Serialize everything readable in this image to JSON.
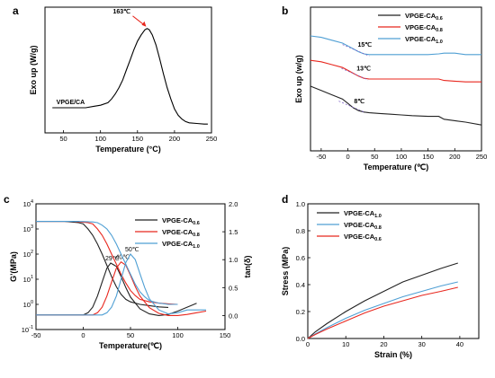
{
  "chart_data": [
    {
      "panel": "a",
      "type": "line",
      "xlabel": "Temperature (°C)",
      "ylabel": "Exo up (W/g)",
      "xlim": [
        25,
        250
      ],
      "xticks": [
        50,
        100,
        150,
        200,
        250
      ],
      "ylim": [
        0,
        1
      ],
      "colors": {
        "line": "#000000",
        "annotation": "#e8271e"
      },
      "series": [
        {
          "name": "VPGE/CA",
          "x": [
            35,
            50,
            60,
            70,
            80,
            90,
            100,
            110,
            115,
            120,
            125,
            130,
            135,
            140,
            145,
            150,
            155,
            160,
            163,
            166,
            170,
            175,
            180,
            185,
            190,
            195,
            200,
            205,
            210,
            215,
            220,
            230,
            240,
            245
          ],
          "y": [
            0.2,
            0.2,
            0.2,
            0.2,
            0.2,
            0.21,
            0.22,
            0.24,
            0.27,
            0.31,
            0.36,
            0.42,
            0.5,
            0.58,
            0.66,
            0.73,
            0.78,
            0.82,
            0.83,
            0.82,
            0.78,
            0.7,
            0.59,
            0.47,
            0.36,
            0.27,
            0.19,
            0.14,
            0.11,
            0.09,
            0.08,
            0.075,
            0.07,
            0.07
          ]
        }
      ],
      "annotations": [
        {
          "text": "163℃",
          "x": 163,
          "y": 0.83
        },
        {
          "text": "VPGE/CA",
          "x": 55,
          "y": 0.23
        }
      ]
    },
    {
      "panel": "b",
      "type": "line",
      "xlabel": "Temperature (℃)",
      "ylabel": "Exo up (w/g)",
      "xlim": [
        -70,
        250
      ],
      "xticks": [
        -50,
        0,
        50,
        100,
        150,
        200,
        250
      ],
      "ylim": [
        0,
        1
      ],
      "legend_position": "top-right",
      "series": [
        {
          "name": "VPGE-CA0.6",
          "color": "#222222",
          "x": [
            -70,
            -50,
            -30,
            -10,
            0,
            10,
            20,
            30,
            40,
            60,
            80,
            100,
            120,
            150,
            170,
            180,
            200,
            220,
            250
          ],
          "y": [
            0.45,
            0.42,
            0.39,
            0.36,
            0.33,
            0.3,
            0.28,
            0.27,
            0.265,
            0.26,
            0.255,
            0.25,
            0.245,
            0.24,
            0.24,
            0.22,
            0.21,
            0.2,
            0.18
          ]
        },
        {
          "name": "VPGE-CA0.8",
          "color": "#e8271e",
          "x": [
            -70,
            -50,
            -30,
            -10,
            0,
            10,
            20,
            30,
            40,
            60,
            80,
            100,
            120,
            150,
            170,
            180,
            200,
            220,
            250
          ],
          "y": [
            0.63,
            0.62,
            0.6,
            0.58,
            0.56,
            0.54,
            0.52,
            0.505,
            0.5,
            0.5,
            0.5,
            0.5,
            0.5,
            0.5,
            0.5,
            0.49,
            0.485,
            0.48,
            0.48
          ]
        },
        {
          "name": "VPGE-CA1.0",
          "color": "#4f9fd4",
          "x": [
            -70,
            -50,
            -30,
            -10,
            0,
            10,
            20,
            30,
            40,
            60,
            80,
            100,
            120,
            150,
            170,
            180,
            200,
            220,
            250
          ],
          "y": [
            0.8,
            0.79,
            0.77,
            0.75,
            0.73,
            0.71,
            0.69,
            0.675,
            0.67,
            0.67,
            0.67,
            0.67,
            0.67,
            0.67,
            0.675,
            0.68,
            0.68,
            0.67,
            0.67
          ]
        }
      ],
      "annotations": [
        {
          "text": "15℃",
          "x": 15,
          "series": "VPGE-CA1.0"
        },
        {
          "text": "13℃",
          "x": 13,
          "series": "VPGE-CA0.8"
        },
        {
          "text": "8℃",
          "x": 8,
          "series": "VPGE-CA0.6"
        }
      ]
    },
    {
      "panel": "c",
      "type": "line",
      "xlabel": "Temperature(℃)",
      "ylabel": "G'(MPa)",
      "y2label": "tan(δ)",
      "xlim": [
        -50,
        150
      ],
      "xticks": [
        -50,
        0,
        50,
        100,
        150
      ],
      "ylog_range_exp": [
        -1,
        4
      ],
      "yticks": [
        "10-1",
        "100",
        "101",
        "102",
        "103",
        "104"
      ],
      "y2lim": [
        -0.25,
        2.0
      ],
      "y2ticks": [
        "0.0",
        "0.5",
        "1.0",
        "1.5",
        "2.0"
      ],
      "legend_position": "top-right",
      "series": [
        {
          "name": "VPGE-CA0.6",
          "color": "#222222",
          "modulus_x": [
            -50,
            -20,
            -5,
            0,
            5,
            10,
            15,
            20,
            25,
            30,
            35,
            40,
            45,
            50,
            60,
            70,
            80,
            90
          ],
          "modulus_log10": [
            3.3,
            3.3,
            3.25,
            3.2,
            3.0,
            2.75,
            2.4,
            2.0,
            1.55,
            1.1,
            0.7,
            0.4,
            0.2,
            0.1,
            0.0,
            -0.05,
            -0.1,
            -0.12
          ],
          "tan_x": [
            -50,
            0,
            5,
            10,
            15,
            20,
            25,
            29,
            35,
            40,
            45,
            50,
            60,
            70,
            80,
            90,
            100,
            110,
            120
          ],
          "tan_y": [
            0.01,
            0.01,
            0.05,
            0.15,
            0.35,
            0.6,
            0.85,
            0.94,
            0.88,
            0.7,
            0.5,
            0.33,
            0.12,
            0.03,
            0.0,
            0.02,
            0.08,
            0.15,
            0.22
          ]
        },
        {
          "name": "VPGE-CA0.8",
          "color": "#e8271e",
          "modulus_x": [
            -50,
            -10,
            5,
            10,
            15,
            20,
            25,
            30,
            35,
            40,
            45,
            50,
            55,
            60,
            70,
            80,
            90,
            100
          ],
          "modulus_log10": [
            3.3,
            3.3,
            3.25,
            3.2,
            3.0,
            2.75,
            2.4,
            2.0,
            1.6,
            1.2,
            0.85,
            0.55,
            0.35,
            0.2,
            0.1,
            0.05,
            0.02,
            0.0
          ],
          "tan_x": [
            -50,
            10,
            15,
            20,
            25,
            30,
            35,
            40,
            45,
            50,
            55,
            60,
            70,
            80,
            90,
            100,
            110,
            120,
            130
          ],
          "tan_y": [
            0.01,
            0.01,
            0.05,
            0.15,
            0.35,
            0.6,
            0.85,
            0.96,
            0.9,
            0.72,
            0.52,
            0.35,
            0.14,
            0.04,
            0.0,
            0.0,
            0.02,
            0.05,
            0.08
          ]
        },
        {
          "name": "VPGE-CA1.0",
          "color": "#4f9fd4",
          "modulus_x": [
            -50,
            -5,
            10,
            15,
            20,
            25,
            30,
            35,
            40,
            45,
            50,
            55,
            60,
            65,
            70,
            80,
            90,
            100
          ],
          "modulus_log10": [
            3.3,
            3.3,
            3.28,
            3.25,
            3.15,
            3.0,
            2.75,
            2.4,
            2.0,
            1.6,
            1.2,
            0.8,
            0.5,
            0.3,
            0.15,
            0.05,
            0.0,
            0.0
          ],
          "tan_x": [
            -50,
            20,
            25,
            30,
            35,
            40,
            45,
            50,
            55,
            60,
            65,
            70,
            80,
            90,
            100,
            110,
            120,
            130
          ],
          "tan_y": [
            0.01,
            0.01,
            0.05,
            0.15,
            0.35,
            0.65,
            0.95,
            1.1,
            1.0,
            0.75,
            0.5,
            0.3,
            0.1,
            0.03,
            0.05,
            0.1,
            0.1,
            0.1
          ]
        }
      ],
      "annotations": [
        {
          "text": "29℃",
          "x": 29,
          "series": "VPGE-CA0.6"
        },
        {
          "text": "40℃",
          "x": 40,
          "series": "VPGE-CA0.8"
        },
        {
          "text": "50℃",
          "x": 50,
          "series": "VPGE-CA1.0"
        }
      ]
    },
    {
      "panel": "d",
      "type": "line",
      "xlabel": "Strain (%)",
      "ylabel": "Stress (MPa)",
      "xlim": [
        0,
        45
      ],
      "xticks": [
        0,
        10,
        20,
        30,
        40
      ],
      "ylim": [
        0,
        1.0
      ],
      "yticks": [
        "0.0",
        "0.2",
        "0.4",
        "0.6",
        "0.8",
        "1.0"
      ],
      "legend_position": "top-left",
      "series": [
        {
          "name": "VPGE-CA1.0",
          "color": "#222222",
          "x": [
            0,
            2,
            5,
            10,
            15,
            20,
            25,
            30,
            35,
            39.5
          ],
          "y": [
            0,
            0.05,
            0.11,
            0.2,
            0.28,
            0.35,
            0.42,
            0.47,
            0.52,
            0.56
          ]
        },
        {
          "name": "VPGE-CA0.8",
          "color": "#4f9fd4",
          "x": [
            0,
            2,
            5,
            10,
            15,
            20,
            25,
            30,
            35,
            39.5
          ],
          "y": [
            0,
            0.035,
            0.08,
            0.15,
            0.21,
            0.26,
            0.31,
            0.35,
            0.39,
            0.42
          ]
        },
        {
          "name": "VPGE-CA0.6",
          "color": "#e8271e",
          "x": [
            0,
            2,
            5,
            10,
            15,
            20,
            25,
            30,
            35,
            39.5
          ],
          "y": [
            0,
            0.03,
            0.07,
            0.13,
            0.19,
            0.24,
            0.28,
            0.32,
            0.35,
            0.38
          ]
        }
      ]
    }
  ]
}
